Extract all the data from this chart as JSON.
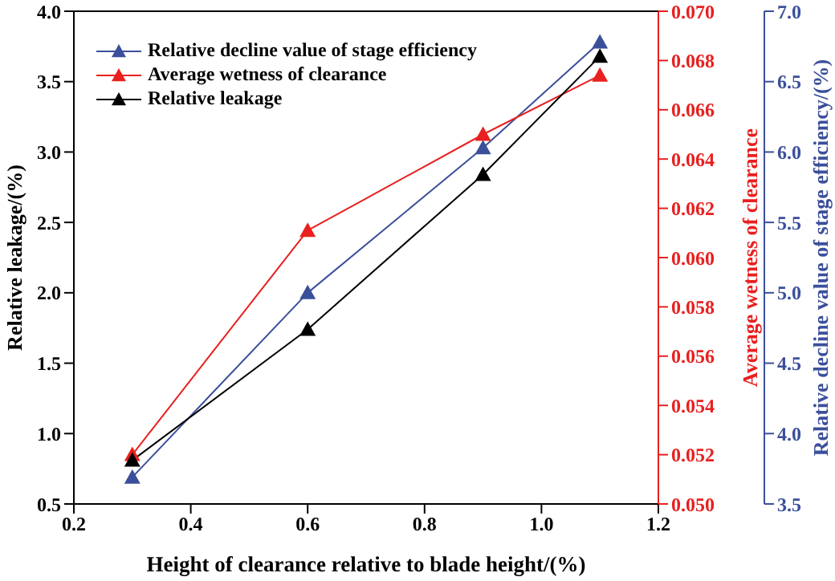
{
  "chart_data": {
    "type": "line",
    "xlabel": "Height of clearance relative to blade height/(%)",
    "ylabel": "Relative leakage/(%)",
    "y2label": "Average wetness of clearance",
    "y3label": "Relative decline value of stage efficiency/(%)",
    "x": [
      0.3,
      0.6,
      0.9,
      1.1
    ],
    "xlim": [
      0.2,
      1.2
    ],
    "xticks": [
      0.2,
      0.4,
      0.6,
      0.8,
      {
        "value": 1.0,
        "label": "1.0"
      },
      1.2
    ],
    "ylim": [
      0.5,
      4.0
    ],
    "yticks": [
      0.5,
      {
        "value": 1.0,
        "label": "1.0"
      },
      1.5,
      {
        "value": 2.0,
        "label": "2.0"
      },
      2.5,
      {
        "value": 3.0,
        "label": "3.0"
      },
      3.5,
      {
        "value": 4.0,
        "label": "4.0"
      }
    ],
    "y2lim": [
      0.05,
      0.07
    ],
    "y2ticks": [
      {
        "value": 0.05,
        "label": "0.050"
      },
      0.052,
      0.054,
      0.056,
      0.058,
      {
        "value": 0.06,
        "label": "0.060"
      },
      0.062,
      0.064,
      0.066,
      0.068,
      {
        "value": 0.07,
        "label": "0.070"
      }
    ],
    "y3lim": [
      3.5,
      7.0
    ],
    "y3ticks": [
      3.5,
      {
        "value": 4.0,
        "label": "4.0"
      },
      4.5,
      {
        "value": 5.0,
        "label": "5.0"
      },
      5.5,
      {
        "value": 6.0,
        "label": "6.0"
      },
      6.5,
      {
        "value": 7.0,
        "label": "7.0"
      }
    ],
    "series": [
      {
        "name": "Relative decline value of stage efficiency",
        "color": "#3b4f9b",
        "axis": "y3",
        "values": [
          3.69,
          5.0,
          6.03,
          6.78
        ]
      },
      {
        "name": "Average wetness of clearance",
        "color": "#e8201f",
        "axis": "y2",
        "values": [
          0.052,
          0.0611,
          0.065,
          0.0674
        ]
      },
      {
        "name": "Relative leakage",
        "color": "#000000",
        "values": [
          0.81,
          1.74,
          2.84,
          3.68
        ]
      }
    ],
    "marker": "triangle",
    "line_style": "solid",
    "legend": "top left",
    "grid": false
  }
}
